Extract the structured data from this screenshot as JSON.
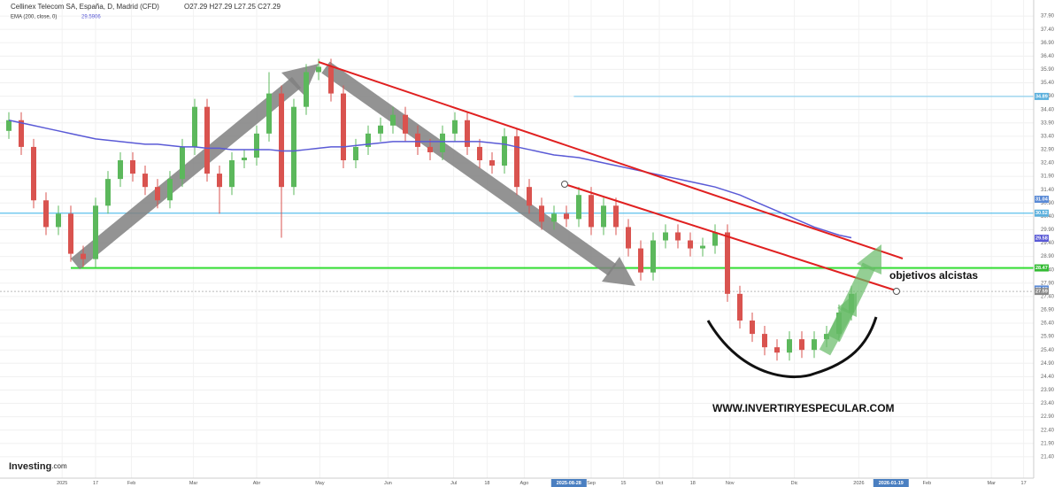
{
  "chart_data": {
    "type": "candlestick",
    "title": "Cellinex Telecom SA, España, D, Madrid (CFD)",
    "ohlc_text": "O27.29 H27.29 L27.25 C27.29",
    "indicator_name": "EMA (200, close, 0)",
    "indicator_value": "29.5906",
    "up_color": "#5cb85c",
    "down_color": "#d9534f",
    "open": [
      33.6,
      34.0,
      33.0,
      31.0,
      30.0,
      30.5,
      29.0,
      28.8,
      30.8,
      31.8,
      32.5,
      32.0,
      31.5,
      31.0,
      31.8,
      33.0,
      34.5,
      32.0,
      31.5,
      32.5,
      32.6,
      33.5,
      35.0,
      31.5,
      34.5,
      35.8,
      36.0,
      35.0,
      32.5,
      33.0,
      33.5,
      33.8,
      34.2,
      33.5,
      33.0,
      32.8,
      33.5,
      34.0,
      33.0,
      32.5,
      32.3,
      33.4,
      31.5,
      30.8,
      30.2,
      30.5,
      30.3,
      31.2,
      30.0,
      30.8,
      30.0,
      29.2,
      28.3,
      29.5,
      29.8,
      29.5,
      29.2,
      29.3,
      29.8,
      27.5,
      26.5,
      26.0,
      25.5,
      25.3,
      25.8,
      25.4,
      25.8,
      26.0,
      26.8
    ],
    "high": [
      34.3,
      34.3,
      33.3,
      31.3,
      30.8,
      30.8,
      29.3,
      31.1,
      32.1,
      32.8,
      32.8,
      32.3,
      31.8,
      32.1,
      33.3,
      34.8,
      34.8,
      32.3,
      32.8,
      32.9,
      33.8,
      35.8,
      35.3,
      34.8,
      36.1,
      36.3,
      36.3,
      35.3,
      33.3,
      33.8,
      34.1,
      34.5,
      34.5,
      33.8,
      33.3,
      33.8,
      34.3,
      34.3,
      33.3,
      32.8,
      33.7,
      33.7,
      31.8,
      31.1,
      30.8,
      30.8,
      31.5,
      31.5,
      31.1,
      31.1,
      30.3,
      29.5,
      29.8,
      30.1,
      30.1,
      29.8,
      29.6,
      30.1,
      30.1,
      27.8,
      26.8,
      26.3,
      25.8,
      26.1,
      26.1,
      26.1,
      26.3,
      27.1,
      27.8
    ],
    "low": [
      33.3,
      32.7,
      30.7,
      29.7,
      29.7,
      28.7,
      28.5,
      28.5,
      30.5,
      31.5,
      31.7,
      31.2,
      30.7,
      30.7,
      31.5,
      32.7,
      31.7,
      30.5,
      31.2,
      32.2,
      32.3,
      33.2,
      29.6,
      31.2,
      34.2,
      35.5,
      34.7,
      32.2,
      32.2,
      32.7,
      33.2,
      33.5,
      33.2,
      32.7,
      32.5,
      32.5,
      33.2,
      32.7,
      32.2,
      32.0,
      32.0,
      31.2,
      30.5,
      29.9,
      29.9,
      30.0,
      30.0,
      29.7,
      29.7,
      29.7,
      28.9,
      28.0,
      28.0,
      29.2,
      29.2,
      28.9,
      28.9,
      29.0,
      27.2,
      26.2,
      25.7,
      25.2,
      25.0,
      25.0,
      25.1,
      25.1,
      25.5,
      25.7,
      26.5
    ],
    "close": [
      34.0,
      33.0,
      31.0,
      30.0,
      30.5,
      29.0,
      28.8,
      30.8,
      31.8,
      32.5,
      32.0,
      31.5,
      31.0,
      31.8,
      33.0,
      34.5,
      32.0,
      31.5,
      32.5,
      32.6,
      33.5,
      35.0,
      31.5,
      34.5,
      35.8,
      36.0,
      35.0,
      32.5,
      33.0,
      33.5,
      33.8,
      34.2,
      33.5,
      33.0,
      32.8,
      33.5,
      34.0,
      33.0,
      32.5,
      32.3,
      33.4,
      31.5,
      30.8,
      30.2,
      30.5,
      30.3,
      31.2,
      30.0,
      30.8,
      30.0,
      29.2,
      28.3,
      29.5,
      29.8,
      29.5,
      29.2,
      29.3,
      29.8,
      27.5,
      26.5,
      26.0,
      25.5,
      25.3,
      25.8,
      25.4,
      25.8,
      26.0,
      26.8,
      27.5
    ],
    "ema": {
      "color": "#5a5ad6",
      "values": [
        34.0,
        33.9,
        33.8,
        33.7,
        33.6,
        33.5,
        33.4,
        33.3,
        33.25,
        33.2,
        33.15,
        33.1,
        33.1,
        33.05,
        33.0,
        33.0,
        32.95,
        32.95,
        32.9,
        32.9,
        32.9,
        32.9,
        32.85,
        32.85,
        32.9,
        32.95,
        33.0,
        33.0,
        33.05,
        33.1,
        33.15,
        33.2,
        33.2,
        33.2,
        33.2,
        33.2,
        33.2,
        33.2,
        33.2,
        33.15,
        33.1,
        33.0,
        32.9,
        32.8,
        32.7,
        32.65,
        32.6,
        32.5,
        32.4,
        32.3,
        32.2,
        32.1,
        32.0,
        31.9,
        31.8,
        31.7,
        31.6,
        31.5,
        31.35,
        31.2,
        31.0,
        30.8,
        30.6,
        30.4,
        30.2,
        30.0,
        29.85,
        29.7,
        29.6
      ]
    },
    "levels": [
      {
        "value": 34.89,
        "color": "#8fd0ee",
        "start": 45.6
      },
      {
        "value": 30.52,
        "color": "#5bc0eb",
        "start": -1
      },
      {
        "value": 28.47,
        "color": "#33dd33",
        "start": 5
      },
      {
        "value": 27.59,
        "color": "#bbbbbb",
        "start": -1
      }
    ],
    "price_labels": [
      {
        "value": 34.89,
        "label": "34.89",
        "color": "#5bb0dd"
      },
      {
        "value": 31.04,
        "label": "31.04",
        "color": "#5a8ad6"
      },
      {
        "value": 30.52,
        "label": "30.52",
        "color": "#5bb0dd"
      },
      {
        "value": 29.58,
        "label": "29.58",
        "color": "#5a5ad6"
      },
      {
        "value": 28.47,
        "label": "28.47",
        "color": "#33bb33"
      },
      {
        "value": 27.68,
        "label": "27.68",
        "color": "#5a8ad6"
      },
      {
        "value": 27.59,
        "label": "27.59",
        "color": "#888888"
      }
    ],
    "ylim": [
      20.6,
      38.5
    ],
    "yticks": [
      {
        "value": 21.4,
        "label": "21.40"
      },
      {
        "value": 21.9,
        "label": "21.90"
      },
      {
        "value": 22.4,
        "label": "22.40"
      },
      {
        "value": 22.9,
        "label": "22.90"
      },
      {
        "value": 23.4,
        "label": "23.40"
      },
      {
        "value": 23.9,
        "label": "23.90"
      },
      {
        "value": 24.4,
        "label": "24.40"
      },
      {
        "value": 24.9,
        "label": "24.90"
      },
      {
        "value": 25.4,
        "label": "25.40"
      },
      {
        "value": 25.9,
        "label": "25.90"
      },
      {
        "value": 26.4,
        "label": "26.40"
      },
      {
        "value": 26.9,
        "label": "26.90"
      },
      {
        "value": 27.4,
        "label": "27.40"
      },
      {
        "value": 27.9,
        "label": "27.90"
      },
      {
        "value": 28.4,
        "label": "28.40"
      },
      {
        "value": 28.9,
        "label": "28.90"
      },
      {
        "value": 29.4,
        "label": "29.40"
      },
      {
        "value": 29.9,
        "label": "29.90"
      },
      {
        "value": 30.4,
        "label": "30.40"
      },
      {
        "value": 30.9,
        "label": "30.90"
      },
      {
        "value": 31.4,
        "label": "31.40"
      },
      {
        "value": 31.9,
        "label": "31.90"
      },
      {
        "value": 32.4,
        "label": "32.40"
      },
      {
        "value": 32.9,
        "label": "32.90"
      },
      {
        "value": 33.4,
        "label": "33.40"
      },
      {
        "value": 33.9,
        "label": "33.90"
      },
      {
        "value": 34.4,
        "label": "34.40"
      },
      {
        "value": 34.9,
        "label": "34.90"
      },
      {
        "value": 35.4,
        "label": "35.40"
      },
      {
        "value": 35.9,
        "label": "35.90"
      },
      {
        "value": 36.4,
        "label": "36.40"
      },
      {
        "value": 36.9,
        "label": "36.90"
      },
      {
        "value": 37.4,
        "label": "37.40"
      },
      {
        "value": 37.9,
        "label": "37.90"
      }
    ],
    "x_labels": [
      {
        "label": "2025",
        "index": 4.3
      },
      {
        "label": "17",
        "index": 7
      },
      {
        "label": "Feb",
        "index": 9.9
      },
      {
        "label": "Mar",
        "index": 14.9
      },
      {
        "label": "Abr",
        "index": 20
      },
      {
        "label": "May",
        "index": 25.1
      },
      {
        "label": "Jun",
        "index": 30.6
      },
      {
        "label": "Jul",
        "index": 35.9
      },
      {
        "label": "18",
        "index": 38.6
      },
      {
        "label": "Ago",
        "index": 41.6
      },
      {
        "label": "2025-08-28",
        "index": 45.2,
        "highlight": true
      },
      {
        "label": "Sep",
        "index": 47
      },
      {
        "label": "15",
        "index": 49.6
      },
      {
        "label": "Oct",
        "index": 52.5
      },
      {
        "label": "18",
        "index": 55.2
      },
      {
        "label": "Nov",
        "index": 58.2
      },
      {
        "label": "Dic",
        "index": 63.4
      },
      {
        "label": "2026",
        "index": 68.6
      },
      {
        "label": "2026-01-19",
        "index": 71.2,
        "highlight": true
      },
      {
        "label": "Feb",
        "index": 74.1
      },
      {
        "label": "Mar",
        "index": 79.3
      },
      {
        "label": "17",
        "index": 81.9
      }
    ],
    "annotations": {
      "target": "objetivos alcistas",
      "website": "WWW.INVERTIRYESPECULAR.COM",
      "brand": "Investing",
      "brand_suffix": ".com"
    }
  }
}
